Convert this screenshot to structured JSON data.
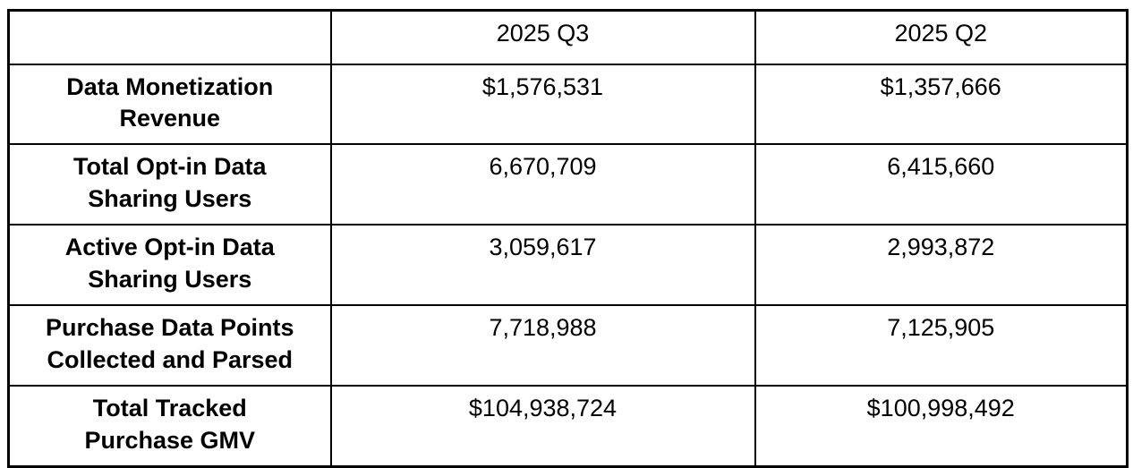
{
  "table": {
    "header": {
      "metric": "",
      "q3": "2025 Q3",
      "q2": "2025 Q2"
    },
    "rows": [
      {
        "label": "Data Monetization\nRevenue",
        "q3": "$1,576,531",
        "q2": "$1,357,666"
      },
      {
        "label": "Total Opt-in Data\nSharing Users",
        "q3": "6,670,709",
        "q2": "6,415,660"
      },
      {
        "label": "Active Opt-in Data\nSharing Users",
        "q3": "3,059,617",
        "q2": "2,993,872"
      },
      {
        "label": "Purchase Data Points\nCollected and Parsed",
        "q3": "7,718,988",
        "q2": "7,125,905"
      },
      {
        "label": "Total Tracked\nPurchase GMV",
        "q3": "$104,938,724",
        "q2": "$100,998,492"
      }
    ]
  }
}
